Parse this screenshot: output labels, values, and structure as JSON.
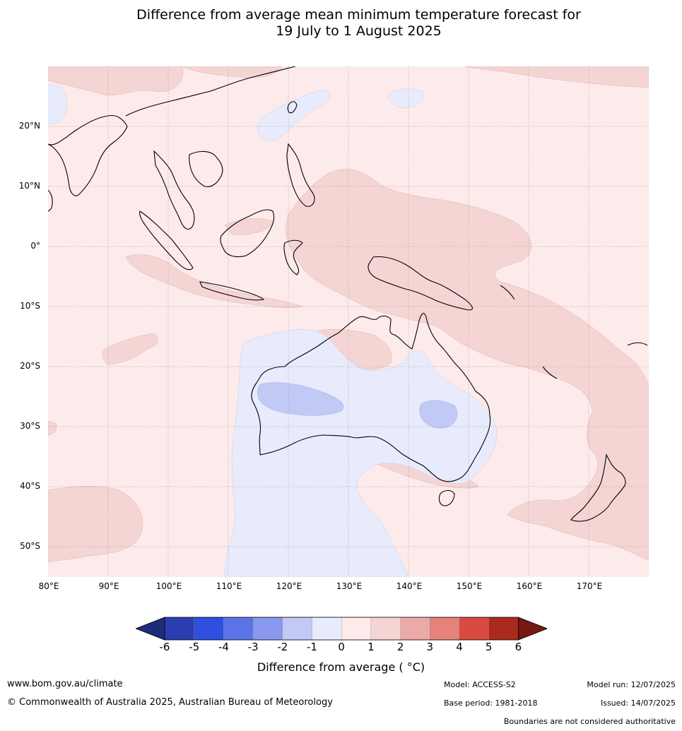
{
  "title": {
    "line1": "Difference from average mean minimum temperature forecast for",
    "line2": "19 July to 1 August 2025"
  },
  "map": {
    "lat_labels": [
      "20°N",
      "10°N",
      "0°",
      "10°S",
      "20°S",
      "30°S",
      "40°S",
      "50°S"
    ],
    "lon_labels": [
      "80°E",
      "90°E",
      "100°E",
      "110°E",
      "120°E",
      "130°E",
      "140°E",
      "150°E",
      "160°E",
      "170°E"
    ]
  },
  "colorbar": {
    "ticks": [
      "-6",
      "-5",
      "-4",
      "-3",
      "-2",
      "-1",
      "0",
      "1",
      "2",
      "3",
      "4",
      "5",
      "6"
    ],
    "colors": [
      "#1f2b7a",
      "#2a3eb0",
      "#2f4fe0",
      "#5c73e8",
      "#8898ec",
      "#c2c9f4",
      "#e8ebfb",
      "#fcebea",
      "#f5d5d4",
      "#ebaaa6",
      "#e4827b",
      "#d94a40",
      "#ab2a20",
      "#751912"
    ],
    "label": "Difference from average ( °C)"
  },
  "footer": {
    "website": "www.bom.gov.au/climate",
    "copyright": "© Commonwealth of Australia 2025, Australian Bureau of Meteorology",
    "model": "Model: ACCESS-S2",
    "base_period": "Base period: 1981-2018",
    "model_run": "Model run: 12/07/2025",
    "issued": "Issued: 14/07/2025",
    "boundaries": "Boundaries are not considered authoritative"
  }
}
